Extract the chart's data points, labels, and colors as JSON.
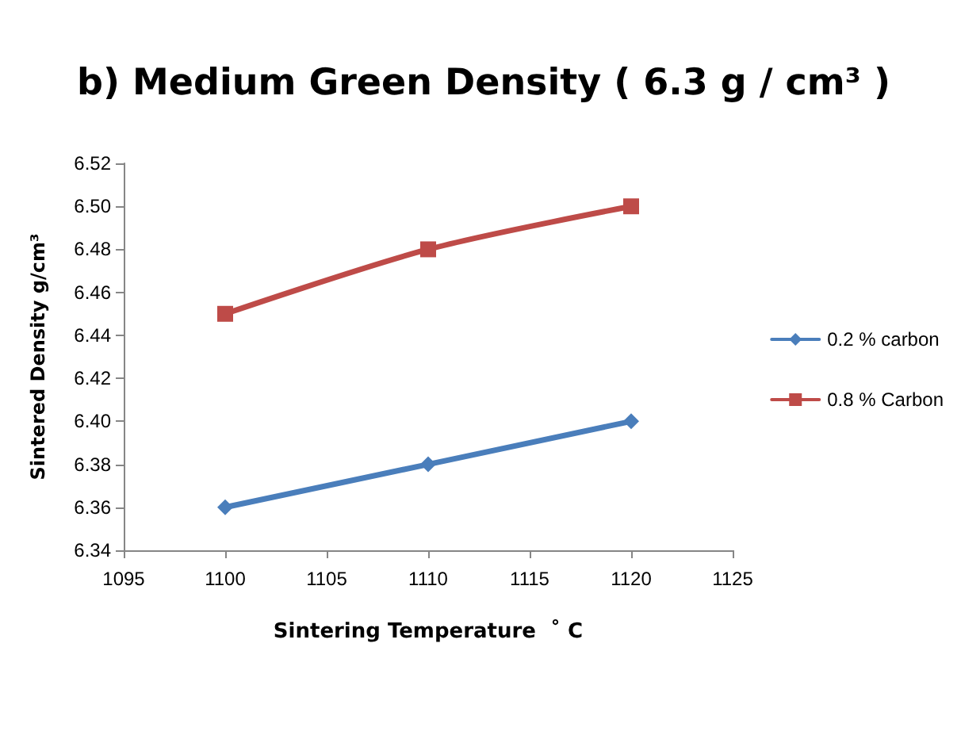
{
  "chart_data": {
    "type": "line",
    "title": "b) Medium Green Density ( 6.3 g / cm³ )",
    "xlabel": "Sintering Temperature  ˚ C",
    "ylabel": "Sintered Density g/cm³",
    "x": [
      1100,
      1110,
      1120
    ],
    "series": [
      {
        "name": "0.2 % carbon",
        "color": "#4a7ebb",
        "marker": "diamond",
        "values": [
          6.36,
          6.38,
          6.4
        ]
      },
      {
        "name": "0.8 % Carbon",
        "color": "#be4b48",
        "marker": "square",
        "values": [
          6.45,
          6.48,
          6.5
        ]
      }
    ],
    "xlim": [
      1095,
      1125
    ],
    "xticks": [
      1095,
      1100,
      1105,
      1110,
      1115,
      1120,
      1125
    ],
    "ylim": [
      6.34,
      6.52
    ],
    "yticks": [
      6.34,
      6.36,
      6.38,
      {
        "value": 6.4,
        "label": "6.40"
      },
      6.42,
      6.44,
      6.46,
      6.48,
      {
        "value": 6.5,
        "label": "6.50"
      },
      6.52
    ],
    "grid": false,
    "legend": "right",
    "line_style": "solid"
  }
}
